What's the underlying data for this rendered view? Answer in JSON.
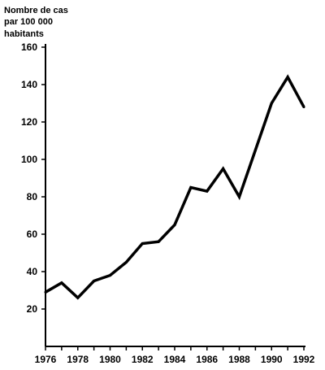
{
  "chart_data": {
    "type": "line",
    "title": "",
    "xlabel": "",
    "ylabel_lines": [
      "Nombre de cas",
      "par 100 000",
      "habitants"
    ],
    "x": [
      1976,
      1977,
      1978,
      1979,
      1980,
      1981,
      1982,
      1983,
      1984,
      1985,
      1986,
      1987,
      1988,
      1989,
      1990,
      1991,
      1992
    ],
    "values": [
      29,
      34,
      26,
      35,
      38,
      45,
      55,
      56,
      65,
      85,
      83,
      95,
      80,
      105,
      130,
      144,
      128
    ],
    "xlim": [
      1976,
      1992
    ],
    "ylim": [
      0,
      160
    ],
    "xticks": [
      "1976",
      "1978",
      "1980",
      "1982",
      "1984",
      "1986",
      "1988",
      "1990",
      "1992"
    ],
    "xtick_values": [
      1976,
      1978,
      1980,
      1982,
      1984,
      1986,
      1988,
      1990,
      1992
    ],
    "yticks": [
      "20",
      "40",
      "60",
      "80",
      "100",
      "120",
      "140",
      "160"
    ],
    "ytick_values": [
      20,
      40,
      60,
      80,
      100,
      120,
      140,
      160
    ],
    "grid": false,
    "line_color": "#000000"
  }
}
